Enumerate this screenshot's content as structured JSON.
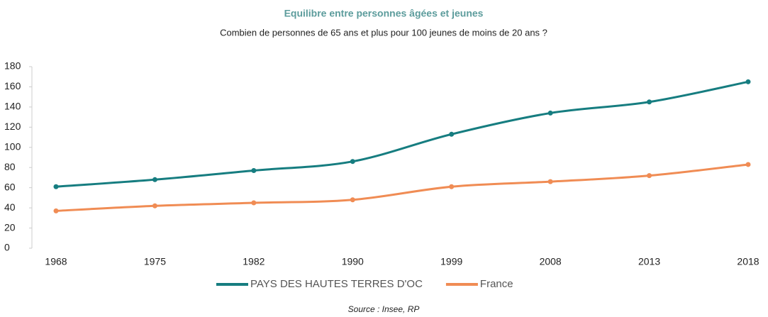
{
  "chart_data": {
    "type": "line",
    "title": "Equilibre entre personnes âgées et jeunes",
    "subtitle": "Combien de personnes de 65 ans et plus pour 100 jeunes de moins de 20 ans ?",
    "source": "Source : Insee, RP",
    "categories": [
      "1968",
      "1975",
      "1982",
      "1990",
      "1999",
      "2008",
      "2013",
      "2018"
    ],
    "series": [
      {
        "name": "PAYS DES HAUTES TERRES D'OC",
        "color": "#167d80",
        "values": [
          61,
          68,
          77,
          86,
          113,
          134,
          145,
          165
        ]
      },
      {
        "name": "France",
        "color": "#f08c54",
        "values": [
          37,
          42,
          45,
          48,
          61,
          66,
          72,
          83
        ]
      }
    ],
    "ylim": [
      0,
      180
    ],
    "yticks": [
      0,
      20,
      40,
      60,
      80,
      100,
      120,
      140,
      160,
      180
    ],
    "grid": false,
    "legend": "bottom"
  }
}
